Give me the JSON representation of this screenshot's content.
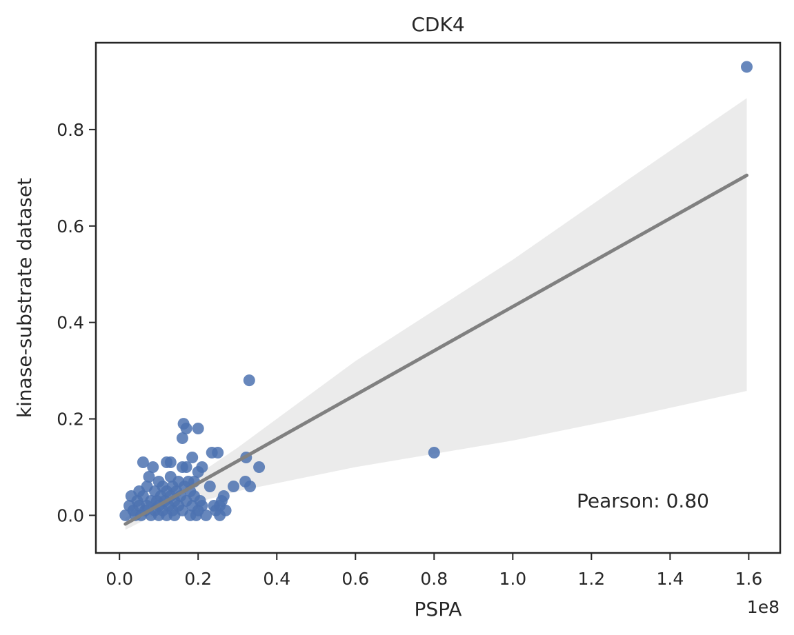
{
  "chart_data": {
    "type": "scatter",
    "title": "CDK4",
    "xlabel": "PSPA",
    "ylabel": "kinase-substrate dataset",
    "x_offset_label": "1e8",
    "annotation": "Pearson: 0.80",
    "xlim": [
      -0.06,
      1.68
    ],
    "ylim": [
      -0.078,
      0.98
    ],
    "x_ticks": [
      0.0,
      0.2,
      0.4,
      0.6,
      0.8,
      1.0,
      1.2,
      1.4,
      1.6
    ],
    "x_tick_labels": [
      "0.0",
      "0.2",
      "0.4",
      "0.6",
      "0.8",
      "1.0",
      "1.2",
      "1.4",
      "1.6"
    ],
    "y_ticks": [
      0.0,
      0.2,
      0.4,
      0.6,
      0.8
    ],
    "y_tick_labels": [
      "0.0",
      "0.2",
      "0.4",
      "0.6",
      "0.8"
    ],
    "grid": false,
    "colors": {
      "points": "#4c72b0",
      "regression": "#808080",
      "band": "#e6e6e6",
      "axes": "#262626"
    },
    "points": [
      {
        "x": 0.015,
        "y": 0.0
      },
      {
        "x": 0.025,
        "y": 0.02
      },
      {
        "x": 0.03,
        "y": 0.04
      },
      {
        "x": 0.035,
        "y": 0.01
      },
      {
        "x": 0.04,
        "y": 0.0
      },
      {
        "x": 0.045,
        "y": 0.03
      },
      {
        "x": 0.05,
        "y": 0.05
      },
      {
        "x": 0.05,
        "y": 0.02
      },
      {
        "x": 0.055,
        "y": 0.0
      },
      {
        "x": 0.06,
        "y": 0.11
      },
      {
        "x": 0.06,
        "y": 0.04
      },
      {
        "x": 0.065,
        "y": 0.01
      },
      {
        "x": 0.07,
        "y": 0.06
      },
      {
        "x": 0.07,
        "y": 0.02
      },
      {
        "x": 0.075,
        "y": 0.08
      },
      {
        "x": 0.08,
        "y": 0.03
      },
      {
        "x": 0.08,
        "y": 0.0
      },
      {
        "x": 0.085,
        "y": 0.1
      },
      {
        "x": 0.09,
        "y": 0.05
      },
      {
        "x": 0.09,
        "y": 0.01
      },
      {
        "x": 0.095,
        "y": 0.03
      },
      {
        "x": 0.1,
        "y": 0.07
      },
      {
        "x": 0.1,
        "y": 0.02
      },
      {
        "x": 0.1,
        "y": 0.0
      },
      {
        "x": 0.105,
        "y": 0.04
      },
      {
        "x": 0.11,
        "y": 0.06
      },
      {
        "x": 0.11,
        "y": 0.01
      },
      {
        "x": 0.115,
        "y": 0.03
      },
      {
        "x": 0.12,
        "y": 0.11
      },
      {
        "x": 0.12,
        "y": 0.05
      },
      {
        "x": 0.12,
        "y": 0.0
      },
      {
        "x": 0.125,
        "y": 0.02
      },
      {
        "x": 0.13,
        "y": 0.11
      },
      {
        "x": 0.13,
        "y": 0.08
      },
      {
        "x": 0.13,
        "y": 0.04
      },
      {
        "x": 0.135,
        "y": 0.06
      },
      {
        "x": 0.135,
        "y": 0.01
      },
      {
        "x": 0.14,
        "y": 0.03
      },
      {
        "x": 0.14,
        "y": 0.0
      },
      {
        "x": 0.145,
        "y": 0.05
      },
      {
        "x": 0.15,
        "y": 0.07
      },
      {
        "x": 0.15,
        "y": 0.02
      },
      {
        "x": 0.155,
        "y": 0.04
      },
      {
        "x": 0.16,
        "y": 0.1
      },
      {
        "x": 0.16,
        "y": 0.16
      },
      {
        "x": 0.16,
        "y": 0.01
      },
      {
        "x": 0.163,
        "y": 0.19
      },
      {
        "x": 0.165,
        "y": 0.06
      },
      {
        "x": 0.17,
        "y": 0.18
      },
      {
        "x": 0.17,
        "y": 0.1
      },
      {
        "x": 0.17,
        "y": 0.03
      },
      {
        "x": 0.175,
        "y": 0.07
      },
      {
        "x": 0.18,
        "y": 0.0
      },
      {
        "x": 0.18,
        "y": 0.05
      },
      {
        "x": 0.185,
        "y": 0.12
      },
      {
        "x": 0.185,
        "y": 0.02
      },
      {
        "x": 0.19,
        "y": 0.07
      },
      {
        "x": 0.19,
        "y": 0.04
      },
      {
        "x": 0.195,
        "y": 0.0
      },
      {
        "x": 0.2,
        "y": 0.18
      },
      {
        "x": 0.2,
        "y": 0.09
      },
      {
        "x": 0.2,
        "y": 0.01
      },
      {
        "x": 0.205,
        "y": 0.03
      },
      {
        "x": 0.21,
        "y": 0.1
      },
      {
        "x": 0.21,
        "y": 0.02
      },
      {
        "x": 0.22,
        "y": 0.0
      },
      {
        "x": 0.23,
        "y": 0.06
      },
      {
        "x": 0.235,
        "y": 0.13
      },
      {
        "x": 0.24,
        "y": 0.02
      },
      {
        "x": 0.245,
        "y": 0.01
      },
      {
        "x": 0.25,
        "y": 0.13
      },
      {
        "x": 0.255,
        "y": 0.02
      },
      {
        "x": 0.255,
        "y": 0.0
      },
      {
        "x": 0.26,
        "y": 0.03
      },
      {
        "x": 0.265,
        "y": 0.04
      },
      {
        "x": 0.27,
        "y": 0.01
      },
      {
        "x": 0.29,
        "y": 0.06
      },
      {
        "x": 0.32,
        "y": 0.07
      },
      {
        "x": 0.322,
        "y": 0.12
      },
      {
        "x": 0.33,
        "y": 0.28
      },
      {
        "x": 0.332,
        "y": 0.06
      },
      {
        "x": 0.355,
        "y": 0.1
      },
      {
        "x": 0.8,
        "y": 0.13
      },
      {
        "x": 1.595,
        "y": 0.93
      }
    ],
    "regression": {
      "x": [
        0.015,
        1.595
      ],
      "y": [
        -0.018,
        0.705
      ]
    },
    "confidence_band": {
      "x": [
        0.015,
        0.1,
        0.3,
        0.6,
        1.0,
        1.3,
        1.595
      ],
      "upper": [
        -0.005,
        0.03,
        0.14,
        0.32,
        0.53,
        0.7,
        0.865
      ],
      "lower": [
        -0.03,
        0.005,
        0.05,
        0.1,
        0.155,
        0.205,
        0.258
      ]
    }
  }
}
